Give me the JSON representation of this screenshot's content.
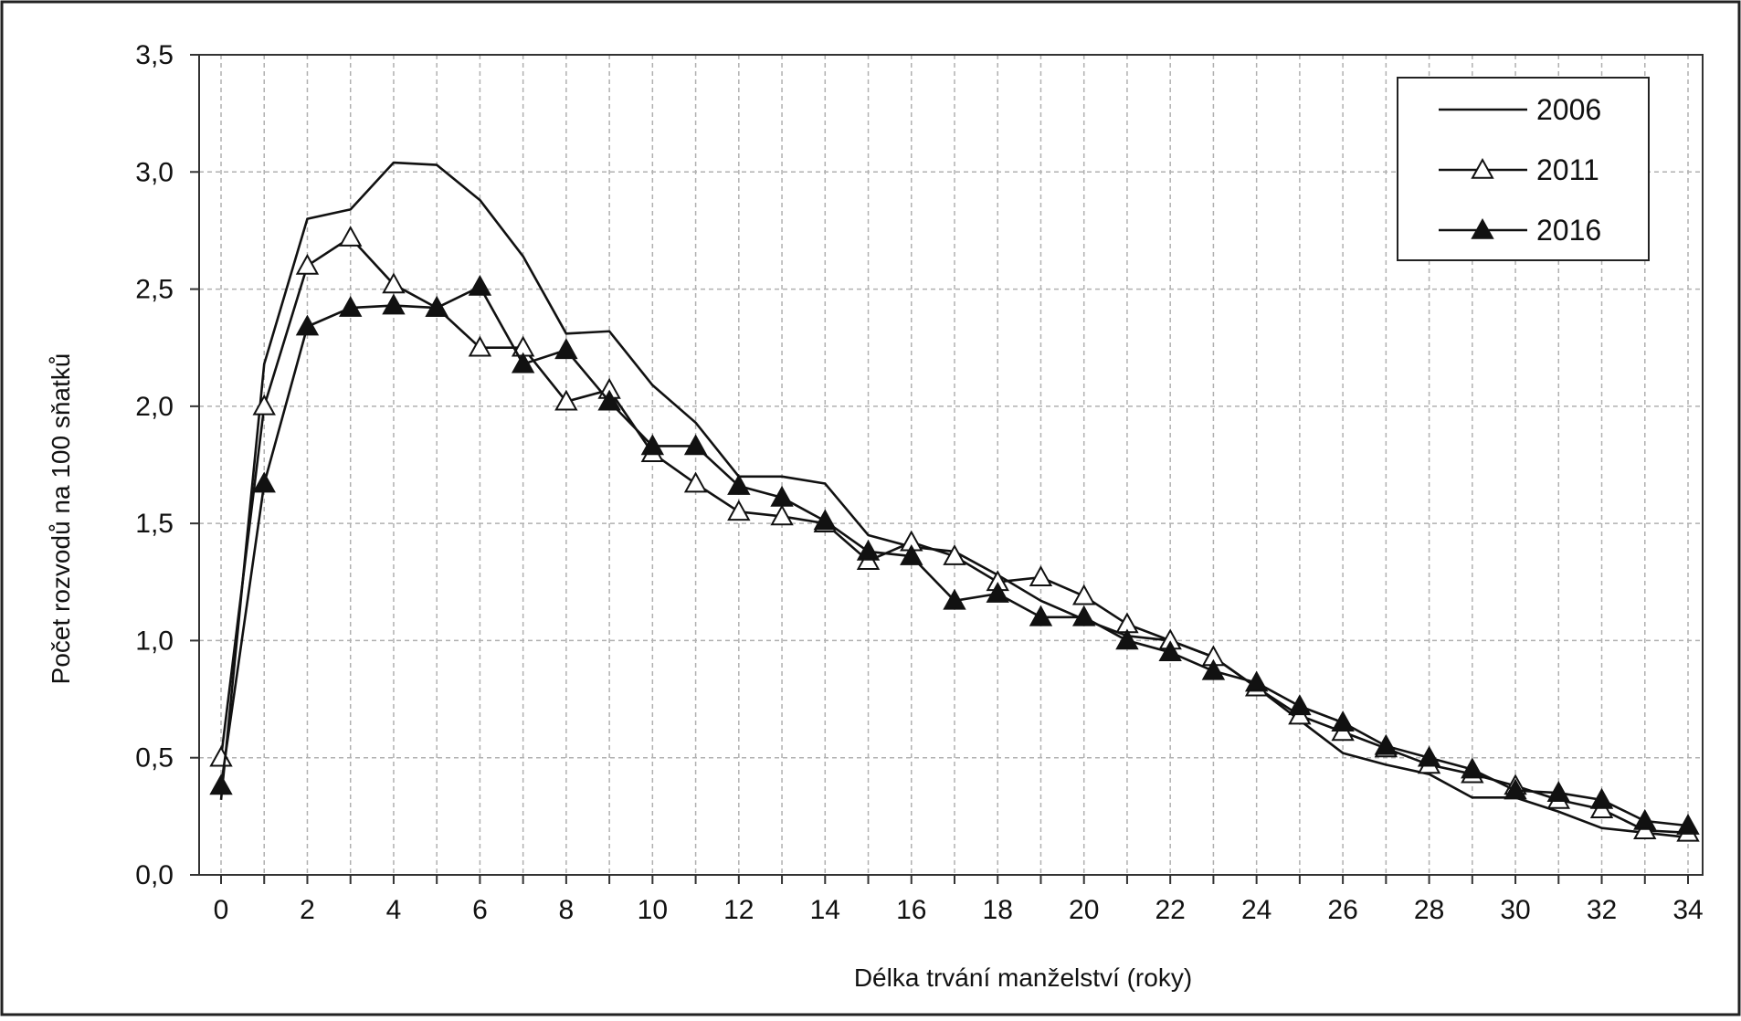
{
  "chart_data": {
    "type": "line",
    "xlabel": "Délka trvání manželství (roky)",
    "ylabel": "Počet rozvodů na 100 sňatků",
    "xlim": [
      0,
      34
    ],
    "ylim": [
      0,
      3.5
    ],
    "grid": true,
    "legend_position": "top-right",
    "xticks": [
      "0",
      "2",
      "4",
      "6",
      "8",
      "10",
      "12",
      "14",
      "16",
      "18",
      "20",
      "22",
      "24",
      "26",
      "28",
      "30",
      "32",
      "34"
    ],
    "yticks": [
      "0,0",
      "0,5",
      "1,0",
      "1,5",
      "2,0",
      "2,5",
      "3,0",
      "3,5"
    ],
    "x": [
      0,
      1,
      2,
      3,
      4,
      5,
      6,
      7,
      8,
      9,
      10,
      11,
      12,
      13,
      14,
      15,
      16,
      17,
      18,
      19,
      20,
      21,
      22,
      23,
      24,
      25,
      26,
      27,
      28,
      29,
      30,
      31,
      32,
      33,
      34
    ],
    "series": [
      {
        "name": "2006",
        "marker": "none",
        "values": [
          0.32,
          2.18,
          2.8,
          2.84,
          3.04,
          3.03,
          2.88,
          2.64,
          2.31,
          2.32,
          2.09,
          1.93,
          1.7,
          1.7,
          1.67,
          1.45,
          1.4,
          1.38,
          1.28,
          1.17,
          1.09,
          1.02,
          1.0,
          0.93,
          0.8,
          0.66,
          0.52,
          0.47,
          0.43,
          0.33,
          0.33,
          0.27,
          0.2,
          0.18,
          0.16
        ]
      },
      {
        "name": "2011",
        "marker": "open-triangle",
        "values": [
          0.5,
          2.0,
          2.6,
          2.72,
          2.52,
          2.42,
          2.25,
          2.25,
          2.02,
          2.07,
          1.8,
          1.67,
          1.55,
          1.53,
          1.5,
          1.34,
          1.42,
          1.36,
          1.25,
          1.27,
          1.19,
          1.07,
          1.0,
          0.93,
          0.8,
          0.68,
          0.61,
          0.54,
          0.47,
          0.43,
          0.38,
          0.32,
          0.28,
          0.19,
          0.18
        ]
      },
      {
        "name": "2016",
        "marker": "filled-triangle",
        "values": [
          0.38,
          1.67,
          2.34,
          2.42,
          2.43,
          2.42,
          2.51,
          2.18,
          2.24,
          2.02,
          1.83,
          1.83,
          1.66,
          1.61,
          1.51,
          1.38,
          1.36,
          1.17,
          1.2,
          1.1,
          1.1,
          1.0,
          0.95,
          0.87,
          0.82,
          0.72,
          0.65,
          0.55,
          0.5,
          0.45,
          0.36,
          0.35,
          0.32,
          0.23,
          0.21
        ]
      }
    ]
  }
}
